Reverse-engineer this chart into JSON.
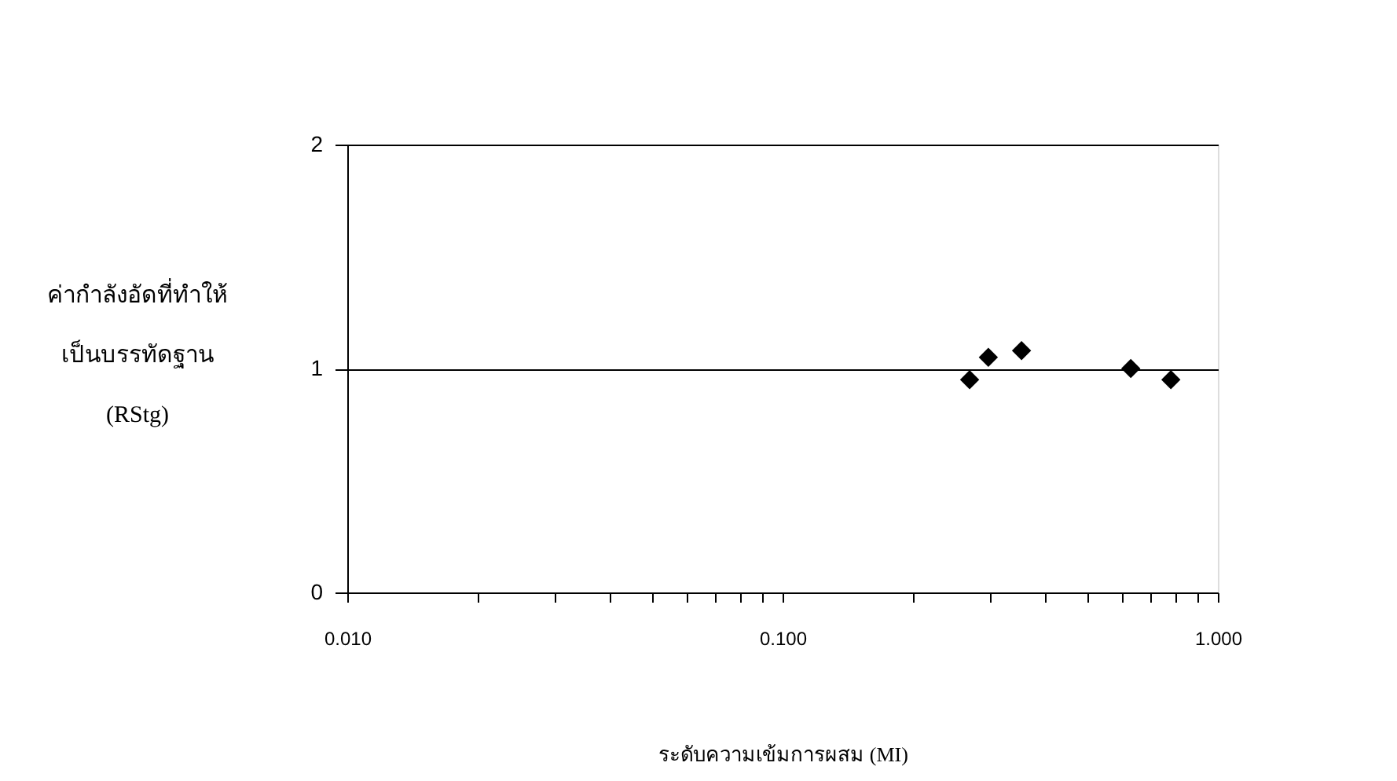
{
  "chart_data": {
    "type": "scatter",
    "xlabel": "ระดับความเข้มการผสม (MI)",
    "ylabel": "ค่ากำลังอัดที่ทำให้\nเป็นบรรทัดฐาน\n(RStg)",
    "series": [
      {
        "color": "#000000",
        "x": [
          0.269,
          0.297,
          0.354,
          0.631,
          0.78
        ],
        "values": [
          0.95,
          1.05,
          1.08,
          1.0,
          0.95
        ]
      }
    ],
    "log": "x",
    "marker": "diamond",
    "grid": "y",
    "legend": false,
    "xlim": [
      0.01,
      1
    ],
    "ylim": [
      0,
      2
    ],
    "yticks": [
      0,
      1,
      2
    ],
    "xticks": [
      {
        "value": 0.01,
        "label": "0.010"
      },
      {
        "value": 0.02,
        "label": null
      },
      {
        "value": 0.03,
        "label": null
      },
      {
        "value": 0.04,
        "label": null
      },
      {
        "value": 0.05,
        "label": null
      },
      {
        "value": 0.06,
        "label": null
      },
      {
        "value": 0.07,
        "label": null
      },
      {
        "value": 0.08,
        "label": null
      },
      {
        "value": 0.09,
        "label": null
      },
      {
        "value": 0.1,
        "label": "0.100"
      },
      {
        "value": 0.2,
        "label": null
      },
      {
        "value": 0.3,
        "label": null
      },
      {
        "value": 0.4,
        "label": null
      },
      {
        "value": 0.5,
        "label": null
      },
      {
        "value": 0.6,
        "label": null
      },
      {
        "value": 0.7,
        "label": null
      },
      {
        "value": 0.8,
        "label": null
      },
      {
        "value": 0.9,
        "label": null
      },
      {
        "value": 1,
        "label": "1.000"
      }
    ]
  }
}
